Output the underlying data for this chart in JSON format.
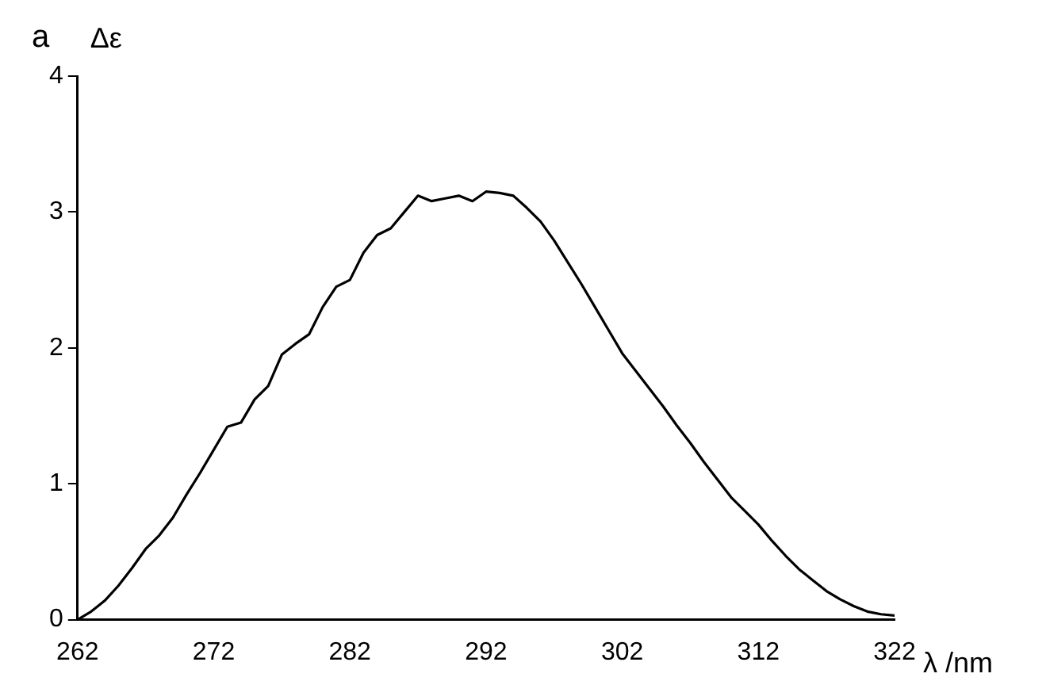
{
  "chart_data": {
    "type": "line",
    "xlabel": "λ /nm",
    "ylabel": "Δε",
    "annotations": [
      "a"
    ],
    "xlim": [
      262,
      322
    ],
    "xticks": [
      262,
      272,
      282,
      292,
      302,
      312,
      322
    ],
    "ylim": [
      0,
      4
    ],
    "yticks": [
      0,
      1,
      2,
      3,
      4
    ],
    "grid": false,
    "legend": false,
    "marker": "none",
    "line_style": "solid",
    "series": [
      {
        "color": "#000000",
        "x": [
          262,
          263,
          264,
          265,
          266,
          267,
          268,
          269,
          270,
          271,
          272,
          273,
          274,
          275,
          276,
          277,
          278,
          279,
          280,
          281,
          282,
          283,
          284,
          285,
          286,
          287,
          288,
          289,
          290,
          291,
          292,
          293,
          294,
          295,
          296,
          297,
          298,
          299,
          300,
          301,
          302,
          303,
          304,
          305,
          306,
          307,
          308,
          309,
          310,
          311,
          312,
          313,
          314,
          315,
          316,
          317,
          318,
          319,
          320,
          321,
          322
        ],
        "values": [
          0,
          0.06,
          0.14,
          0.25,
          0.38,
          0.52,
          0.62,
          0.75,
          0.92,
          1.08,
          1.25,
          1.42,
          1.45,
          1.62,
          1.72,
          1.95,
          2.03,
          2.1,
          2.3,
          2.45,
          2.5,
          2.7,
          2.83,
          2.88,
          3,
          3.12,
          3.08,
          3.1,
          3.12,
          3.08,
          3.15,
          3.14,
          3.12,
          3.03,
          2.93,
          2.79,
          2.63,
          2.47,
          2.3,
          2.13,
          1.96,
          1.83,
          1.7,
          1.57,
          1.43,
          1.3,
          1.16,
          1.03,
          0.9,
          0.8,
          0.7,
          0.58,
          0.47,
          0.37,
          0.29,
          0.21,
          0.15,
          0.1,
          0.06,
          0.04,
          0.03
        ]
      }
    ]
  }
}
